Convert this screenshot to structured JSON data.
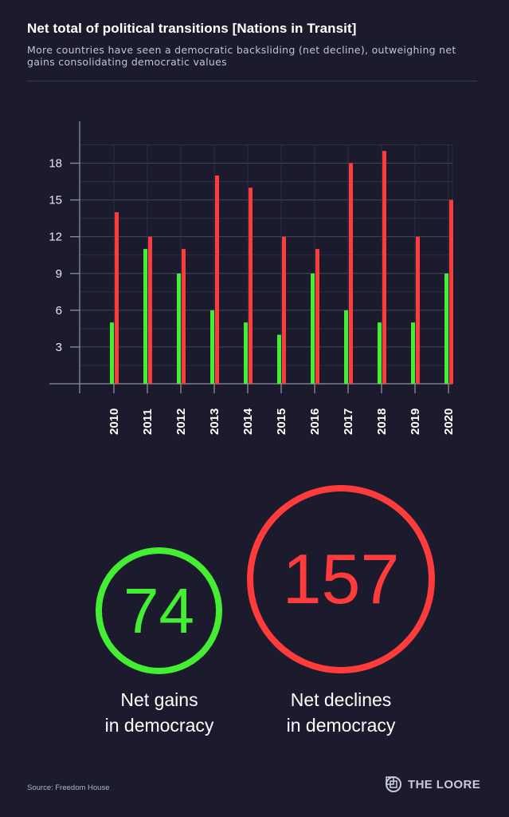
{
  "header": {
    "title": "Net total of political transitions [Nations in Transit]",
    "subtitle": "More countries have seen a democratic backsliding (net decline), outweighing net gains consolidating democratic values"
  },
  "colors": {
    "gains": "#44ee33",
    "declines": "#ff3b3b",
    "background": "#1b1b2d",
    "grid": "#3a3b50"
  },
  "chart_data": {
    "type": "bar",
    "title": "Net total of political transitions [Nations in Transit]",
    "categories": [
      "2010",
      "2011",
      "2012",
      "2013",
      "2014",
      "2015",
      "2016",
      "2017",
      "2018",
      "2019",
      "2020"
    ],
    "series": [
      {
        "values": [
          5,
          11,
          9,
          6,
          5,
          4,
          9,
          6,
          5,
          5,
          9
        ],
        "color": "#44ee33"
      },
      {
        "values": [
          14,
          12,
          11,
          17,
          16,
          12,
          11,
          18,
          19,
          12,
          15
        ],
        "color": "#ff3b3b"
      }
    ],
    "yticks": [
      3,
      6,
      9,
      12,
      15,
      18
    ],
    "ylim": [
      0,
      21
    ],
    "xlabel": "",
    "ylabel": "",
    "grid": true,
    "legend": "none"
  },
  "totals": {
    "gains_value": "74",
    "gains_label_line1": "Net gains",
    "gains_label_line2": "in democracy",
    "declines_value": "157",
    "declines_label_line1": "Net declines",
    "declines_label_line2": "in democracy"
  },
  "footer": {
    "source": "Source: Freedom House",
    "brand": "THE LOORE",
    "brand_icon": "loore-logo-icon"
  }
}
